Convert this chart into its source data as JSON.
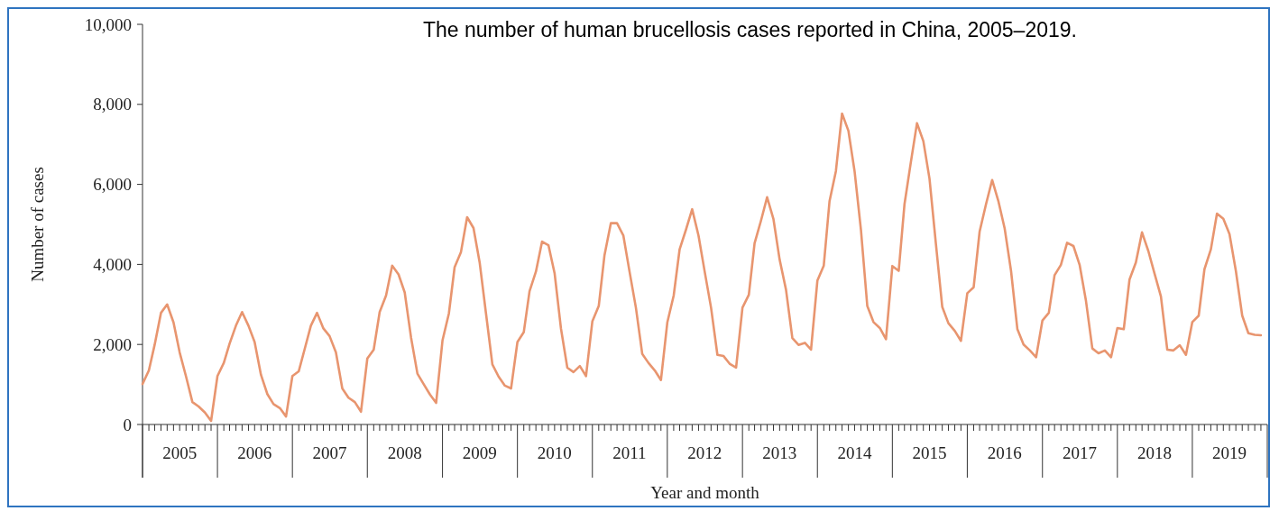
{
  "chart_data": {
    "type": "line",
    "title": "The number of human brucellosis cases reported in China, 2005–2019.",
    "xlabel": "Year and month",
    "ylabel": "Number of cases",
    "x": [
      "2005-01",
      "2005-02",
      "2005-03",
      "2005-04",
      "2005-05",
      "2005-06",
      "2005-07",
      "2005-08",
      "2005-09",
      "2005-10",
      "2005-11",
      "2005-12",
      "2006-01",
      "2006-02",
      "2006-03",
      "2006-04",
      "2006-05",
      "2006-06",
      "2006-07",
      "2006-08",
      "2006-09",
      "2006-10",
      "2006-11",
      "2006-12",
      "2007-01",
      "2007-02",
      "2007-03",
      "2007-04",
      "2007-05",
      "2007-06",
      "2007-07",
      "2007-08",
      "2007-09",
      "2007-10",
      "2007-11",
      "2007-12",
      "2008-01",
      "2008-02",
      "2008-03",
      "2008-04",
      "2008-05",
      "2008-06",
      "2008-07",
      "2008-08",
      "2008-09",
      "2008-10",
      "2008-11",
      "2008-12",
      "2009-01",
      "2009-02",
      "2009-03",
      "2009-04",
      "2009-05",
      "2009-06",
      "2009-07",
      "2009-08",
      "2009-09",
      "2009-10",
      "2009-11",
      "2009-12",
      "2010-01",
      "2010-02",
      "2010-03",
      "2010-04",
      "2010-05",
      "2010-06",
      "2010-07",
      "2010-08",
      "2010-09",
      "2010-10",
      "2010-11",
      "2010-12",
      "2011-01",
      "2011-02",
      "2011-03",
      "2011-04",
      "2011-05",
      "2011-06",
      "2011-07",
      "2011-08",
      "2011-09",
      "2011-10",
      "2011-11",
      "2011-12",
      "2012-01",
      "2012-02",
      "2012-03",
      "2012-04",
      "2012-05",
      "2012-06",
      "2012-07",
      "2012-08",
      "2012-09",
      "2012-10",
      "2012-11",
      "2012-12",
      "2013-01",
      "2013-02",
      "2013-03",
      "2013-04",
      "2013-05",
      "2013-06",
      "2013-07",
      "2013-08",
      "2013-09",
      "2013-10",
      "2013-11",
      "2013-12",
      "2014-01",
      "2014-02",
      "2014-03",
      "2014-04",
      "2014-05",
      "2014-06",
      "2014-07",
      "2014-08",
      "2014-09",
      "2014-10",
      "2014-11",
      "2014-12",
      "2015-01",
      "2015-02",
      "2015-03",
      "2015-04",
      "2015-05",
      "2015-06",
      "2015-07",
      "2015-08",
      "2015-09",
      "2015-10",
      "2015-11",
      "2015-12",
      "2016-01",
      "2016-02",
      "2016-03",
      "2016-04",
      "2016-05",
      "2016-06",
      "2016-07",
      "2016-08",
      "2016-09",
      "2016-10",
      "2016-11",
      "2016-12",
      "2017-01",
      "2017-02",
      "2017-03",
      "2017-04",
      "2017-05",
      "2017-06",
      "2017-07",
      "2017-08",
      "2017-09",
      "2017-10",
      "2017-11",
      "2017-12",
      "2018-01",
      "2018-02",
      "2018-03",
      "2018-04",
      "2018-05",
      "2018-06",
      "2018-07",
      "2018-08",
      "2018-09",
      "2018-10",
      "2018-11",
      "2018-12",
      "2019-01",
      "2019-02",
      "2019-03",
      "2019-04",
      "2019-05",
      "2019-06",
      "2019-07",
      "2019-08",
      "2019-09",
      "2019-10",
      "2019-11",
      "2019-12"
    ],
    "series": [
      {
        "color": "#e8956f",
        "values": [
          1010,
          1350,
          1990,
          2790,
          3000,
          2550,
          1800,
          1200,
          560,
          450,
          300,
          90,
          1210,
          1540,
          2020,
          2470,
          2810,
          2470,
          2060,
          1240,
          760,
          510,
          410,
          200,
          1210,
          1330,
          1870,
          2470,
          2790,
          2400,
          2210,
          1800,
          900,
          670,
          560,
          320,
          1650,
          1870,
          2810,
          3220,
          3970,
          3750,
          3300,
          2170,
          1270,
          1010,
          750,
          540,
          2100,
          2770,
          3930,
          4310,
          5180,
          4910,
          4050,
          2770,
          1500,
          1200,
          970,
          900,
          2060,
          2310,
          3330,
          3820,
          4570,
          4480,
          3780,
          2400,
          1420,
          1310,
          1460,
          1210,
          2580,
          2960,
          4230,
          5030,
          5030,
          4720,
          3820,
          2920,
          1760,
          1540,
          1350,
          1110,
          2550,
          3220,
          4380,
          4870,
          5380,
          4720,
          3820,
          2920,
          1740,
          1710,
          1510,
          1420,
          2920,
          3240,
          4530,
          5090,
          5680,
          5130,
          4120,
          3370,
          2160,
          1990,
          2040,
          1870,
          3600,
          3970,
          5580,
          6330,
          7770,
          7340,
          6330,
          4870,
          2960,
          2560,
          2410,
          2130,
          3960,
          3840,
          5500,
          6550,
          7530,
          7080,
          6140,
          4520,
          2940,
          2530,
          2340,
          2090,
          3280,
          3430,
          4820,
          5500,
          6110,
          5570,
          4900,
          3840,
          2380,
          2000,
          1850,
          1680,
          2600,
          2790,
          3730,
          3990,
          4540,
          4460,
          3990,
          3090,
          1900,
          1780,
          1850,
          1680,
          2410,
          2380,
          3620,
          4050,
          4800,
          4330,
          3770,
          3200,
          1870,
          1850,
          1980,
          1740,
          2560,
          2720,
          3880,
          4370,
          5270,
          5140,
          4760,
          3840,
          2720,
          2280,
          2240,
          2230
        ]
      }
    ],
    "xlim": [
      "2005-01",
      "2020-01"
    ],
    "xticks": [
      {
        "value": "2005-01",
        "label": null
      },
      {
        "value": "2005-02",
        "label": null
      },
      {
        "value": "2005-03",
        "label": null
      },
      {
        "value": "2005-04",
        "label": null
      },
      {
        "value": "2005-05",
        "label": null
      },
      {
        "value": "2005-06",
        "label": null
      },
      {
        "value": "2005-07",
        "label": "2005"
      },
      {
        "value": "2005-08",
        "label": null
      },
      {
        "value": "2005-09",
        "label": null
      },
      {
        "value": "2005-10",
        "label": null
      },
      {
        "value": "2005-11",
        "label": null
      },
      {
        "value": "2005-12",
        "label": null
      },
      {
        "value": "2006-01",
        "label": null
      },
      {
        "value": "2006-02",
        "label": null
      },
      {
        "value": "2006-03",
        "label": null
      },
      {
        "value": "2006-04",
        "label": null
      },
      {
        "value": "2006-05",
        "label": null
      },
      {
        "value": "2006-06",
        "label": null
      },
      {
        "value": "2006-07",
        "label": "2006"
      },
      {
        "value": "2006-08",
        "label": null
      },
      {
        "value": "2006-09",
        "label": null
      },
      {
        "value": "2006-10",
        "label": null
      },
      {
        "value": "2006-11",
        "label": null
      },
      {
        "value": "2006-12",
        "label": null
      },
      {
        "value": "2007-01",
        "label": null
      },
      {
        "value": "2007-02",
        "label": null
      },
      {
        "value": "2007-03",
        "label": null
      },
      {
        "value": "2007-04",
        "label": null
      },
      {
        "value": "2007-05",
        "label": null
      },
      {
        "value": "2007-06",
        "label": null
      },
      {
        "value": "2007-07",
        "label": "2007"
      },
      {
        "value": "2007-08",
        "label": null
      },
      {
        "value": "2007-09",
        "label": null
      },
      {
        "value": "2007-10",
        "label": null
      },
      {
        "value": "2007-11",
        "label": null
      },
      {
        "value": "2007-12",
        "label": null
      },
      {
        "value": "2008-01",
        "label": null
      },
      {
        "value": "2008-02",
        "label": null
      },
      {
        "value": "2008-03",
        "label": null
      },
      {
        "value": "2008-04",
        "label": null
      },
      {
        "value": "2008-05",
        "label": null
      },
      {
        "value": "2008-06",
        "label": null
      },
      {
        "value": "2008-07",
        "label": "2008"
      },
      {
        "value": "2008-08",
        "label": null
      },
      {
        "value": "2008-09",
        "label": null
      },
      {
        "value": "2008-10",
        "label": null
      },
      {
        "value": "2008-11",
        "label": null
      },
      {
        "value": "2008-12",
        "label": null
      },
      {
        "value": "2009-01",
        "label": null
      },
      {
        "value": "2009-02",
        "label": null
      },
      {
        "value": "2009-03",
        "label": null
      },
      {
        "value": "2009-04",
        "label": null
      },
      {
        "value": "2009-05",
        "label": null
      },
      {
        "value": "2009-06",
        "label": null
      },
      {
        "value": "2009-07",
        "label": "2009"
      },
      {
        "value": "2009-08",
        "label": null
      },
      {
        "value": "2009-09",
        "label": null
      },
      {
        "value": "2009-10",
        "label": null
      },
      {
        "value": "2009-11",
        "label": null
      },
      {
        "value": "2009-12",
        "label": null
      },
      {
        "value": "2010-01",
        "label": null
      },
      {
        "value": "2010-02",
        "label": null
      },
      {
        "value": "2010-03",
        "label": null
      },
      {
        "value": "2010-04",
        "label": null
      },
      {
        "value": "2010-05",
        "label": null
      },
      {
        "value": "2010-06",
        "label": null
      },
      {
        "value": "2010-07",
        "label": "2010"
      },
      {
        "value": "2010-08",
        "label": null
      },
      {
        "value": "2010-09",
        "label": null
      },
      {
        "value": "2010-10",
        "label": null
      },
      {
        "value": "2010-11",
        "label": null
      },
      {
        "value": "2010-12",
        "label": null
      },
      {
        "value": "2011-01",
        "label": null
      },
      {
        "value": "2011-02",
        "label": null
      },
      {
        "value": "2011-03",
        "label": null
      },
      {
        "value": "2011-04",
        "label": null
      },
      {
        "value": "2011-05",
        "label": null
      },
      {
        "value": "2011-06",
        "label": null
      },
      {
        "value": "2011-07",
        "label": "2011"
      },
      {
        "value": "2011-08",
        "label": null
      },
      {
        "value": "2011-09",
        "label": null
      },
      {
        "value": "2011-10",
        "label": null
      },
      {
        "value": "2011-11",
        "label": null
      },
      {
        "value": "2011-12",
        "label": null
      },
      {
        "value": "2012-01",
        "label": null
      },
      {
        "value": "2012-02",
        "label": null
      },
      {
        "value": "2012-03",
        "label": null
      },
      {
        "value": "2012-04",
        "label": null
      },
      {
        "value": "2012-05",
        "label": null
      },
      {
        "value": "2012-06",
        "label": null
      },
      {
        "value": "2012-07",
        "label": "2012"
      },
      {
        "value": "2012-08",
        "label": null
      },
      {
        "value": "2012-09",
        "label": null
      },
      {
        "value": "2012-10",
        "label": null
      },
      {
        "value": "2012-11",
        "label": null
      },
      {
        "value": "2012-12",
        "label": null
      },
      {
        "value": "2013-01",
        "label": null
      },
      {
        "value": "2013-02",
        "label": null
      },
      {
        "value": "2013-03",
        "label": null
      },
      {
        "value": "2013-04",
        "label": null
      },
      {
        "value": "2013-05",
        "label": null
      },
      {
        "value": "2013-06",
        "label": null
      },
      {
        "value": "2013-07",
        "label": "2013"
      },
      {
        "value": "2013-08",
        "label": null
      },
      {
        "value": "2013-09",
        "label": null
      },
      {
        "value": "2013-10",
        "label": null
      },
      {
        "value": "2013-11",
        "label": null
      },
      {
        "value": "2013-12",
        "label": null
      },
      {
        "value": "2014-01",
        "label": null
      },
      {
        "value": "2014-02",
        "label": null
      },
      {
        "value": "2014-03",
        "label": null
      },
      {
        "value": "2014-04",
        "label": null
      },
      {
        "value": "2014-05",
        "label": null
      },
      {
        "value": "2014-06",
        "label": null
      },
      {
        "value": "2014-07",
        "label": "2014"
      },
      {
        "value": "2014-08",
        "label": null
      },
      {
        "value": "2014-09",
        "label": null
      },
      {
        "value": "2014-10",
        "label": null
      },
      {
        "value": "2014-11",
        "label": null
      },
      {
        "value": "2014-12",
        "label": null
      },
      {
        "value": "2015-01",
        "label": null
      },
      {
        "value": "2015-02",
        "label": null
      },
      {
        "value": "2015-03",
        "label": null
      },
      {
        "value": "2015-04",
        "label": null
      },
      {
        "value": "2015-05",
        "label": null
      },
      {
        "value": "2015-06",
        "label": null
      },
      {
        "value": "2015-07",
        "label": "2015"
      },
      {
        "value": "2015-08",
        "label": null
      },
      {
        "value": "2015-09",
        "label": null
      },
      {
        "value": "2015-10",
        "label": null
      },
      {
        "value": "2015-11",
        "label": null
      },
      {
        "value": "2015-12",
        "label": null
      },
      {
        "value": "2016-01",
        "label": null
      },
      {
        "value": "2016-02",
        "label": null
      },
      {
        "value": "2016-03",
        "label": null
      },
      {
        "value": "2016-04",
        "label": null
      },
      {
        "value": "2016-05",
        "label": null
      },
      {
        "value": "2016-06",
        "label": null
      },
      {
        "value": "2016-07",
        "label": "2016"
      },
      {
        "value": "2016-08",
        "label": null
      },
      {
        "value": "2016-09",
        "label": null
      },
      {
        "value": "2016-10",
        "label": null
      },
      {
        "value": "2016-11",
        "label": null
      },
      {
        "value": "2016-12",
        "label": null
      },
      {
        "value": "2017-01",
        "label": null
      },
      {
        "value": "2017-02",
        "label": null
      },
      {
        "value": "2017-03",
        "label": null
      },
      {
        "value": "2017-04",
        "label": null
      },
      {
        "value": "2017-05",
        "label": null
      },
      {
        "value": "2017-06",
        "label": null
      },
      {
        "value": "2017-07",
        "label": "2017"
      },
      {
        "value": "2017-08",
        "label": null
      },
      {
        "value": "2017-09",
        "label": null
      },
      {
        "value": "2017-10",
        "label": null
      },
      {
        "value": "2017-11",
        "label": null
      },
      {
        "value": "2017-12",
        "label": null
      },
      {
        "value": "2018-01",
        "label": null
      },
      {
        "value": "2018-02",
        "label": null
      },
      {
        "value": "2018-03",
        "label": null
      },
      {
        "value": "2018-04",
        "label": null
      },
      {
        "value": "2018-05",
        "label": null
      },
      {
        "value": "2018-06",
        "label": null
      },
      {
        "value": "2018-07",
        "label": "2018"
      },
      {
        "value": "2018-08",
        "label": null
      },
      {
        "value": "2018-09",
        "label": null
      },
      {
        "value": "2018-10",
        "label": null
      },
      {
        "value": "2018-11",
        "label": null
      },
      {
        "value": "2018-12",
        "label": null
      },
      {
        "value": "2019-01",
        "label": null
      },
      {
        "value": "2019-02",
        "label": null
      },
      {
        "value": "2019-03",
        "label": null
      },
      {
        "value": "2019-04",
        "label": null
      },
      {
        "value": "2019-05",
        "label": null
      },
      {
        "value": "2019-06",
        "label": null
      },
      {
        "value": "2019-07",
        "label": "2019"
      },
      {
        "value": "2019-08",
        "label": null
      },
      {
        "value": "2019-09",
        "label": null
      },
      {
        "value": "2019-10",
        "label": null
      },
      {
        "value": "2019-11",
        "label": null
      },
      {
        "value": "2019-12",
        "label": null
      },
      {
        "value": "2020-01",
        "label": null
      }
    ],
    "ylim": [
      0,
      10000
    ],
    "yticks": [
      0,
      {
        "value": 2000,
        "label": "2,000"
      },
      {
        "value": 4000,
        "label": "4,000"
      },
      {
        "value": 6000,
        "label": "6,000"
      },
      {
        "value": 8000,
        "label": "8,000"
      },
      {
        "value": 10000,
        "label": "10,000"
      }
    ],
    "line_style": "solid"
  }
}
